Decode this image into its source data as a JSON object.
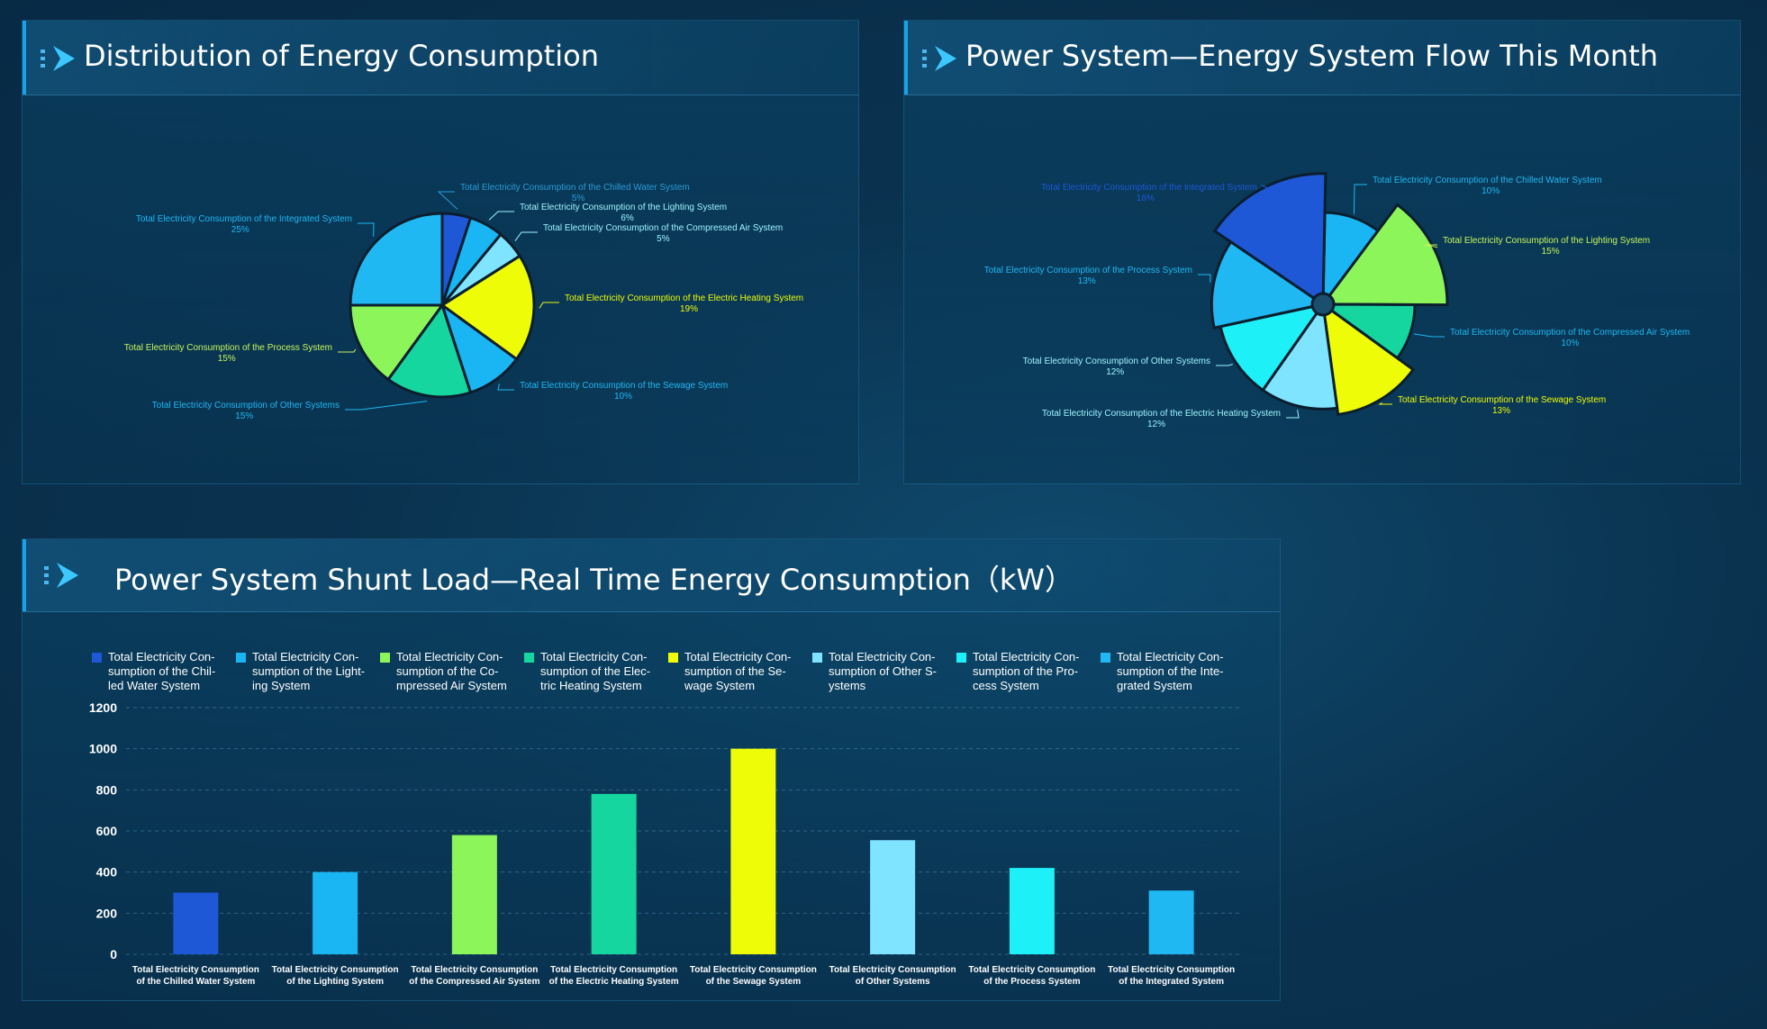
{
  "panels": {
    "distribution": {
      "title": "Distribution of Energy Consumption"
    },
    "flow": {
      "title": "Power System—Energy System Flow This Month"
    },
    "shunt": {
      "title": "Power System Shunt Load—Real Time Energy Consumption（kW）"
    }
  },
  "icons": {
    "header": "arrow-chevron-icon"
  },
  "colors": {
    "chilled": "#1e58d6",
    "lighting": "#1ab6f4",
    "compressed": "#8cf55a",
    "heating": "#16d6a0",
    "sewage": "#eefc08",
    "other": "#7fe4ff",
    "process": "#1ef0f8",
    "integrated": "#1fb8f2"
  },
  "chart_data": [
    {
      "type": "pie",
      "title": "Distribution of Energy Consumption",
      "slices": [
        {
          "label": "Total Electricity Consumption of the Chilled Water System",
          "pct_label": "5%",
          "value": 5
        },
        {
          "label": "Total Electricity Consumption of the Lighting System",
          "pct_label": "6%",
          "value": 6
        },
        {
          "label": "Total Electricity Consumption of the Compressed Air System",
          "pct_label": "5%",
          "value": 5
        },
        {
          "label": "Total Electricity Consumption of the Electric Heating System",
          "pct_label": "19%",
          "value": 19
        },
        {
          "label": "Total Electricity Consumption of the Sewage System",
          "pct_label": "10%",
          "value": 10
        },
        {
          "label": "Total Electricity Consumption of Other Systems",
          "pct_label": "15%",
          "value": 15
        },
        {
          "label": "Total Electricity Consumption of the Process System",
          "pct_label": "15%",
          "value": 15
        },
        {
          "label": "Total Electricity Consumption of the Integrated System",
          "pct_label": "25%",
          "value": 25
        }
      ]
    },
    {
      "type": "pie",
      "subtype": "rose",
      "title": "Power System—Energy System Flow This Month",
      "slices": [
        {
          "label": "Total Electricity Consumption of the Chilled Water System",
          "pct_label": "10%",
          "value": 10
        },
        {
          "label": "Total Electricity Consumption of the Lighting System",
          "pct_label": "15%",
          "value": 15
        },
        {
          "label": "Total Electricity Consumption of the Compressed Air System",
          "pct_label": "10%",
          "value": 10
        },
        {
          "label": "Total Electricity Consumption of the Sewage System",
          "pct_label": "13%",
          "value": 13
        },
        {
          "label": "Total Electricity Consumption of the Electric Heating System",
          "pct_label": "12%",
          "value": 12
        },
        {
          "label": "Total Electricity Consumption of Other Systems",
          "pct_label": "12%",
          "value": 12
        },
        {
          "label": "Total Electricity Consumption of the Process System",
          "pct_label": "13%",
          "value": 13
        },
        {
          "label": "Total Electricity Consumption of the Integrated System",
          "pct_label": "16%",
          "value": 16
        }
      ]
    },
    {
      "type": "bar",
      "title": "Power System Shunt Load—Real Time Energy Consumption（kW）",
      "ylim": [
        0,
        1200
      ],
      "yticks": [
        "0",
        "200",
        "400",
        "600",
        "800",
        "1000",
        "1200"
      ],
      "grid": true,
      "legend_position": "top",
      "categories": [
        [
          "Total Electricity Consumption",
          "of the Chilled Water System"
        ],
        [
          "Total Electricity Consumption",
          "of the Lighting System"
        ],
        [
          "Total Electricity Consumption",
          "of the Compressed Air System"
        ],
        [
          "Total Electricity Consumption",
          "of the Electric Heating System"
        ],
        [
          "Total Electricity Consumption",
          "of the Sewage System"
        ],
        [
          "Total Electricity Consumption",
          "of Other Systems"
        ],
        [
          "Total Electricity Consumption",
          "of the Process System"
        ],
        [
          "Total Electricity Consumption",
          "of the Integrated System"
        ]
      ],
      "legend": [
        [
          "Total Electricity Con-",
          "sumption of the Chil-",
          "led Water System"
        ],
        [
          "Total Electricity Con-",
          "sumption of the Light-",
          "ing System"
        ],
        [
          "Total Electricity Con-",
          "sumption of the Co-",
          "mpressed Air System"
        ],
        [
          "Total Electricity Con-",
          "sumption of the Elec-",
          "tric Heating System"
        ],
        [
          "Total Electricity Con-",
          "sumption of the Se-",
          "wage System"
        ],
        [
          "Total Electricity Con-",
          "sumption of Other S-",
          "ystems"
        ],
        [
          "Total Electricity Con-",
          "sumption of the Pro-",
          "cess System"
        ],
        [
          "Total Electricity Con-",
          "sumption of the Inte-",
          "grated System"
        ]
      ],
      "values": [
        300,
        400,
        580,
        780,
        1000,
        555,
        420,
        310
      ]
    }
  ]
}
